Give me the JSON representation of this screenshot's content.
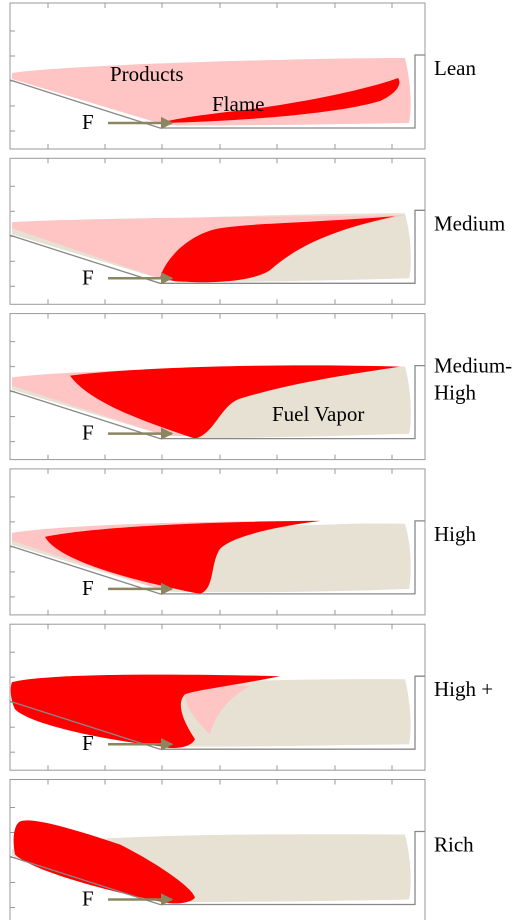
{
  "panels": [
    {
      "lines": [
        "Lean"
      ],
      "inlet": "F"
    },
    {
      "lines": [
        "Medium"
      ],
      "inlet": "F"
    },
    {
      "lines": [
        "Medium-",
        "High"
      ],
      "inlet": "F"
    },
    {
      "lines": [
        "High"
      ],
      "inlet": "F"
    },
    {
      "lines": [
        "High +"
      ],
      "inlet": "F"
    },
    {
      "lines": [
        "Rich"
      ],
      "inlet": "F"
    }
  ],
  "annotations": {
    "products": "Products",
    "flame": "Flame",
    "fuel_vapor": "Fuel Vapor"
  }
}
